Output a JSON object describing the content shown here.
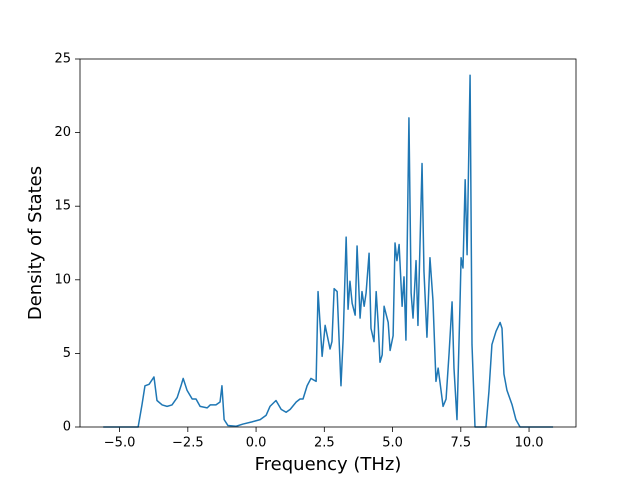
{
  "chart_data": {
    "type": "line",
    "xlabel": "Frequency (THz)",
    "ylabel": "Density of States",
    "color": "#1f77b4",
    "xlim": [
      -6.45,
      11.72
    ],
    "ylim": [
      0,
      25
    ],
    "xticks": [
      {
        "value": -5,
        "label": "−5.0"
      },
      {
        "value": -2.5,
        "label": "−2.5"
      },
      {
        "value": 0,
        "label": "0.0"
      },
      {
        "value": 2.5,
        "label": "2.5"
      },
      {
        "value": 5,
        "label": "5.0"
      },
      {
        "value": 7.5,
        "label": "7.5"
      },
      {
        "value": 10,
        "label": "10.0"
      }
    ],
    "yticks": [
      0,
      5,
      10,
      15,
      20,
      25
    ],
    "grid": false,
    "x": [
      -5.6,
      -4.32,
      -4.18,
      -4.07,
      -3.92,
      -3.74,
      -3.63,
      -3.44,
      -3.26,
      -3.08,
      -2.89,
      -2.75,
      -2.67,
      -2.53,
      -2.34,
      -2.2,
      -2.05,
      -1.79,
      -1.68,
      -1.47,
      -1.32,
      -1.25,
      -1.17,
      -1.03,
      -0.73,
      -0.48,
      -0.15,
      0.15,
      0.37,
      0.51,
      0.73,
      0.92,
      1.1,
      1.25,
      1.47,
      1.61,
      1.72,
      1.87,
      2.01,
      2.2,
      2.27,
      2.42,
      2.53,
      2.71,
      2.78,
      2.86,
      2.97,
      3.11,
      3.19,
      3.3,
      3.37,
      3.44,
      3.52,
      3.63,
      3.7,
      3.81,
      3.88,
      3.96,
      4.03,
      4.14,
      4.21,
      4.32,
      4.4,
      4.47,
      4.54,
      4.62,
      4.69,
      4.84,
      4.91,
      5.02,
      5.09,
      5.16,
      5.24,
      5.35,
      5.42,
      5.49,
      5.6,
      5.68,
      5.75,
      5.86,
      5.93,
      6.08,
      6.15,
      6.26,
      6.37,
      6.48,
      6.59,
      6.67,
      6.74,
      6.85,
      6.96,
      7.07,
      7.18,
      7.25,
      7.36,
      7.47,
      7.51,
      7.58,
      7.66,
      7.73,
      7.84,
      7.91,
      8.02,
      8.42,
      8.53,
      8.64,
      8.79,
      8.94,
      9.01,
      9.08,
      9.19,
      9.38,
      9.52,
      9.67,
      10.88
    ],
    "values": [
      0,
      0,
      1.5,
      2.8,
      2.9,
      3.4,
      1.8,
      1.5,
      1.4,
      1.5,
      2.0,
      2.8,
      3.3,
      2.5,
      1.9,
      1.9,
      1.4,
      1.3,
      1.5,
      1.5,
      1.7,
      2.8,
      0.5,
      0.1,
      0.05,
      0.2,
      0.35,
      0.5,
      0.8,
      1.4,
      1.8,
      1.2,
      1.0,
      1.2,
      1.7,
      1.9,
      1.9,
      2.8,
      3.3,
      3.1,
      9.2,
      4.8,
      6.9,
      5.3,
      5.8,
      9.4,
      9.2,
      2.8,
      6.0,
      12.9,
      8.0,
      9.9,
      8.4,
      7.6,
      12.3,
      7.4,
      9.2,
      8.2,
      9.1,
      11.8,
      6.7,
      5.8,
      9.2,
      7.1,
      4.4,
      4.9,
      8.2,
      7.1,
      5.2,
      6.2,
      12.5,
      11.3,
      12.4,
      8.2,
      10.2,
      5.9,
      21.0,
      9.1,
      7.4,
      11.3,
      6.9,
      17.9,
      10.6,
      6.1,
      11.5,
      8.6,
      3.1,
      4.0,
      3.0,
      1.4,
      1.9,
      5.0,
      8.5,
      4.0,
      0.5,
      8.3,
      11.5,
      10.8,
      16.8,
      11.7,
      23.9,
      5.6,
      0,
      0,
      2.4,
      5.6,
      6.5,
      7.1,
      6.7,
      3.6,
      2.5,
      1.5,
      0.5,
      0,
      0
    ]
  }
}
